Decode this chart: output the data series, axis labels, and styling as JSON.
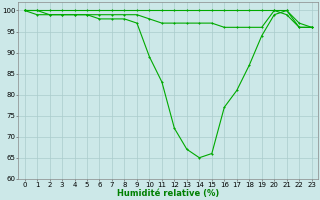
{
  "xlabel": "Humidité relative (%)",
  "background_color": "#cce8e8",
  "grid_color": "#aacccc",
  "line_color": "#00aa00",
  "xlim": [
    -0.5,
    23.5
  ],
  "ylim": [
    60,
    102
  ],
  "xticks": [
    0,
    1,
    2,
    3,
    4,
    5,
    6,
    7,
    8,
    9,
    10,
    11,
    12,
    13,
    14,
    15,
    16,
    17,
    18,
    19,
    20,
    21,
    22,
    23
  ],
  "yticks": [
    60,
    65,
    70,
    75,
    80,
    85,
    90,
    95,
    100
  ],
  "series1_x": [
    0,
    1,
    2,
    3,
    4,
    5,
    6,
    7,
    8,
    9,
    10,
    11,
    12,
    13,
    14,
    15,
    16,
    17,
    18,
    19,
    20,
    21,
    22,
    23
  ],
  "series1_y": [
    100,
    100,
    100,
    100,
    100,
    100,
    100,
    100,
    100,
    100,
    100,
    100,
    100,
    100,
    100,
    100,
    100,
    100,
    100,
    100,
    100,
    100,
    96,
    96
  ],
  "series2_x": [
    0,
    1,
    2,
    3,
    4,
    5,
    6,
    7,
    8,
    9,
    10,
    11,
    12,
    13,
    14,
    15,
    16,
    17,
    18,
    19,
    20,
    21,
    22,
    23
  ],
  "series2_y": [
    100,
    99,
    99,
    99,
    99,
    99,
    99,
    99,
    99,
    99,
    98,
    97,
    97,
    97,
    97,
    97,
    96,
    96,
    96,
    96,
    100,
    99,
    96,
    96
  ],
  "series3_x": [
    0,
    1,
    2,
    3,
    4,
    5,
    6,
    7,
    8,
    9,
    10,
    11,
    12,
    13,
    14,
    15,
    16,
    17,
    18,
    19,
    20,
    21,
    22,
    23
  ],
  "series3_y": [
    100,
    100,
    99,
    99,
    99,
    99,
    98,
    98,
    98,
    97,
    89,
    83,
    72,
    67,
    65,
    66,
    77,
    81,
    87,
    94,
    99,
    100,
    97,
    96
  ],
  "tick_fontsize": 5.0,
  "xlabel_fontsize": 6.0,
  "lw": 0.8,
  "msize": 2.0
}
